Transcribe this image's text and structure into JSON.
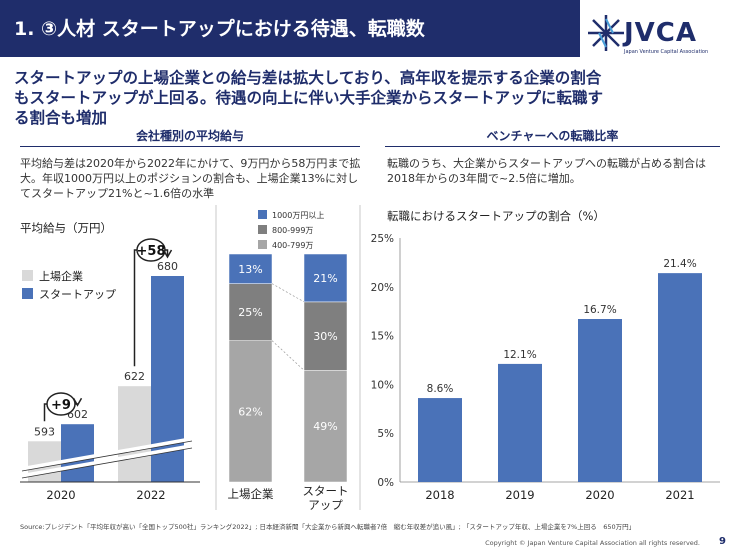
{
  "header": {
    "title": "1. ③人材 スタートアップにおける待遇、転職数",
    "logo_text": "JVCA",
    "logo_sub": "Japan Venture Capital Association"
  },
  "headline": "スタートアップの上場企業との給与差は拡大しており、高年収を提示する企業の割合もスタートアップが上回る。待遇の向上に伴い大手企業からスタートアップに転職する割合も増加",
  "left_section": {
    "title": "会社種別の平均給与",
    "description": "平均給与差は2020年から2022年にかけて、9万円から58万円まで拡大。年収1000万円以上のポジションの割合も、上場企業13%に対してスタートアップ21%と~1.6倍の水準",
    "axis_label": "平均給与（万円）",
    "legend": [
      "上場企業",
      "スタートアップ"
    ]
  },
  "right_section": {
    "title": "ベンチャーへの転職比率",
    "description": "転職のうち、大企業からスタートアップへの転職が占める割合は2018年からの3年間で~2.5倍に増加。",
    "chart_title": "転職におけるスタートアップの割合（%）"
  },
  "colors": {
    "navy": "#1f2d6b",
    "blue": "#4a72b8",
    "light_gray": "#d9d9d9",
    "dark_gray": "#7f7f7f",
    "mid_gray": "#a6a6a6"
  },
  "chart_data": [
    {
      "type": "bar",
      "title": "平均給与（万円）",
      "categories": [
        "2020",
        "2022"
      ],
      "series": [
        {
          "name": "上場企業",
          "values": [
            593,
            622
          ]
        },
        {
          "name": "スタートアップ",
          "values": [
            602,
            680
          ]
        }
      ],
      "annotations": [
        "+9",
        "+58"
      ]
    },
    {
      "type": "bar",
      "stacked": true,
      "categories": [
        "上場企業",
        "スタートアップ"
      ],
      "series": [
        {
          "name": "400-799万",
          "values": [
            62,
            49
          ]
        },
        {
          "name": "800-999万",
          "values": [
            25,
            30
          ]
        },
        {
          "name": "1000万円以上",
          "values": [
            13,
            21
          ]
        }
      ],
      "legend_labels": [
        "1000万円以上",
        "800-999万",
        "400-799万"
      ],
      "data_labels": [
        [
          "62%",
          "25%",
          "13%"
        ],
        [
          "49%",
          "30%",
          "21%"
        ]
      ]
    },
    {
      "type": "bar",
      "title": "転職におけるスタートアップの割合（%）",
      "categories": [
        "2018",
        "2019",
        "2020",
        "2021"
      ],
      "values": [
        8.6,
        12.1,
        16.7,
        21.4
      ],
      "data_labels": [
        "8.6%",
        "12.1%",
        "16.7%",
        "21.4%"
      ],
      "ylim": [
        0,
        25
      ],
      "yticks": [
        "0%",
        "5%",
        "10%",
        "15%",
        "20%",
        "25%"
      ]
    }
  ],
  "footer": {
    "source": "Source:プレジデント「平均年収が高い「全国トップ500社」ランキング2022」; 日本経済新聞「大企業から新興へ転職者7倍　縮む年収差が追い風」; 「スタートアップ年収、上場企業を7%上回る　650万円」",
    "copyright": "Copyright © Japan Venture Capital Association all rights reserved.",
    "page": "9"
  }
}
